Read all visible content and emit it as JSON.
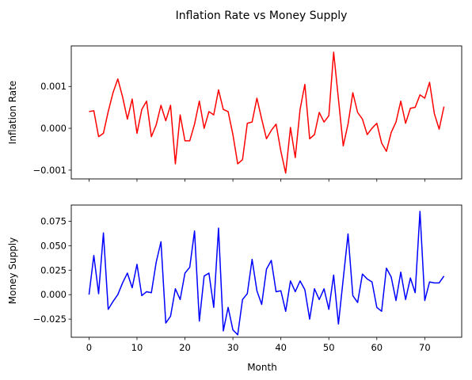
{
  "chart_data": {
    "title": "Inflation Rate vs Money Supply",
    "shared_x": {
      "label": "Month",
      "ticks": [
        0,
        10,
        20,
        30,
        40,
        50,
        60,
        70
      ],
      "lim": [
        -3.7,
        77.7
      ]
    },
    "panels": [
      {
        "type": "line",
        "ylabel": "Inflation Rate",
        "color": "#ff0000",
        "ylim": [
          -0.00121,
          0.00197
        ],
        "yticks": [
          -0.001,
          0.0,
          0.001
        ],
        "yticklabels": [
          "−0.001",
          "0.000",
          "0.001"
        ],
        "series": [
          {
            "x": [
              0,
              1,
              2,
              3,
              4,
              5,
              6,
              7,
              8,
              9,
              10,
              11,
              12,
              13,
              14,
              15,
              16,
              17,
              18,
              19,
              20,
              21,
              22,
              23,
              24,
              25,
              26,
              27,
              28,
              29,
              30,
              31,
              32,
              33,
              34,
              35,
              36,
              37,
              38,
              39,
              40,
              41,
              42,
              43,
              44,
              45,
              46,
              47,
              48,
              49,
              50,
              51,
              52,
              53,
              54,
              55,
              56,
              57,
              58,
              59,
              60,
              61,
              62,
              63,
              64,
              65,
              66,
              67,
              68,
              69,
              70,
              71,
              72,
              73,
              74
            ],
            "y": [
              0.0004,
              0.00042,
              -0.0002,
              -0.00012,
              0.0004,
              0.00085,
              0.00118,
              0.00075,
              0.00022,
              0.0007,
              -0.00012,
              0.00045,
              0.00065,
              -0.0002,
              8e-05,
              0.00055,
              0.00018,
              0.00055,
              -0.00085,
              0.00032,
              -0.0003,
              -0.0003,
              0.0001,
              0.00065,
              0.0,
              0.0004,
              0.00032,
              0.00092,
              0.00045,
              0.0004,
              -0.00015,
              -0.00085,
              -0.00075,
              0.00012,
              0.00015,
              0.00072,
              0.00022,
              -0.00025,
              -5e-05,
              0.0001,
              -0.00055,
              -0.00107,
              2e-05,
              -0.0007,
              0.00045,
              0.00105,
              -0.00025,
              -0.00015,
              0.00038,
              0.00015,
              0.0003,
              0.00182,
              0.0007,
              -0.00042,
              0.0001,
              0.00085,
              0.00038,
              0.00022,
              -0.00015,
              0.0,
              0.00012,
              -0.00035,
              -0.00055,
              -0.0001,
              0.00015,
              0.00065,
              0.00012,
              0.00048,
              0.0005,
              0.0008,
              0.00072,
              0.0011,
              0.00035,
              -2e-05,
              0.00052
            ]
          }
        ]
      },
      {
        "type": "line",
        "ylabel": "Money Supply",
        "color": "#0000ff",
        "ylim": [
          -0.0435,
          0.0915
        ],
        "yticks": [
          -0.025,
          0.0,
          0.025,
          0.05,
          0.075
        ],
        "yticklabels": [
          "−0.025",
          "0.000",
          "0.025",
          "0.050",
          "0.075"
        ],
        "series": [
          {
            "x": [
              0,
              1,
              2,
              3,
              4,
              5,
              6,
              7,
              8,
              9,
              10,
              11,
              12,
              13,
              14,
              15,
              16,
              17,
              18,
              19,
              20,
              21,
              22,
              23,
              24,
              25,
              26,
              27,
              28,
              29,
              30,
              31,
              32,
              33,
              34,
              35,
              36,
              37,
              38,
              39,
              40,
              41,
              42,
              43,
              44,
              45,
              46,
              47,
              48,
              49,
              50,
              51,
              52,
              53,
              54,
              55,
              56,
              57,
              58,
              59,
              60,
              61,
              62,
              63,
              64,
              65,
              66,
              67,
              68,
              69,
              70,
              71,
              72,
              73,
              74
            ],
            "y": [
              0.0,
              0.04,
              0.001,
              0.063,
              -0.015,
              -0.007,
              0.0,
              0.012,
              0.022,
              0.007,
              0.031,
              -0.001,
              0.003,
              0.002,
              0.033,
              0.054,
              -0.029,
              -0.022,
              0.006,
              -0.005,
              0.022,
              0.028,
              0.065,
              -0.027,
              0.019,
              0.022,
              -0.013,
              0.068,
              -0.037,
              -0.013,
              -0.036,
              -0.041,
              -0.005,
              0.001,
              0.036,
              0.004,
              -0.01,
              0.026,
              0.035,
              0.003,
              0.004,
              -0.017,
              0.014,
              0.003,
              0.014,
              0.005,
              -0.025,
              0.006,
              -0.005,
              0.006,
              -0.015,
              0.02,
              -0.03,
              0.016,
              0.062,
              -0.001,
              -0.008,
              0.021,
              0.016,
              0.013,
              -0.013,
              -0.017,
              0.027,
              0.018,
              -0.006,
              0.023,
              -0.005,
              0.017,
              0.002,
              0.085,
              -0.006,
              0.013,
              0.012,
              0.012,
              0.019
            ]
          }
        ]
      }
    ]
  }
}
